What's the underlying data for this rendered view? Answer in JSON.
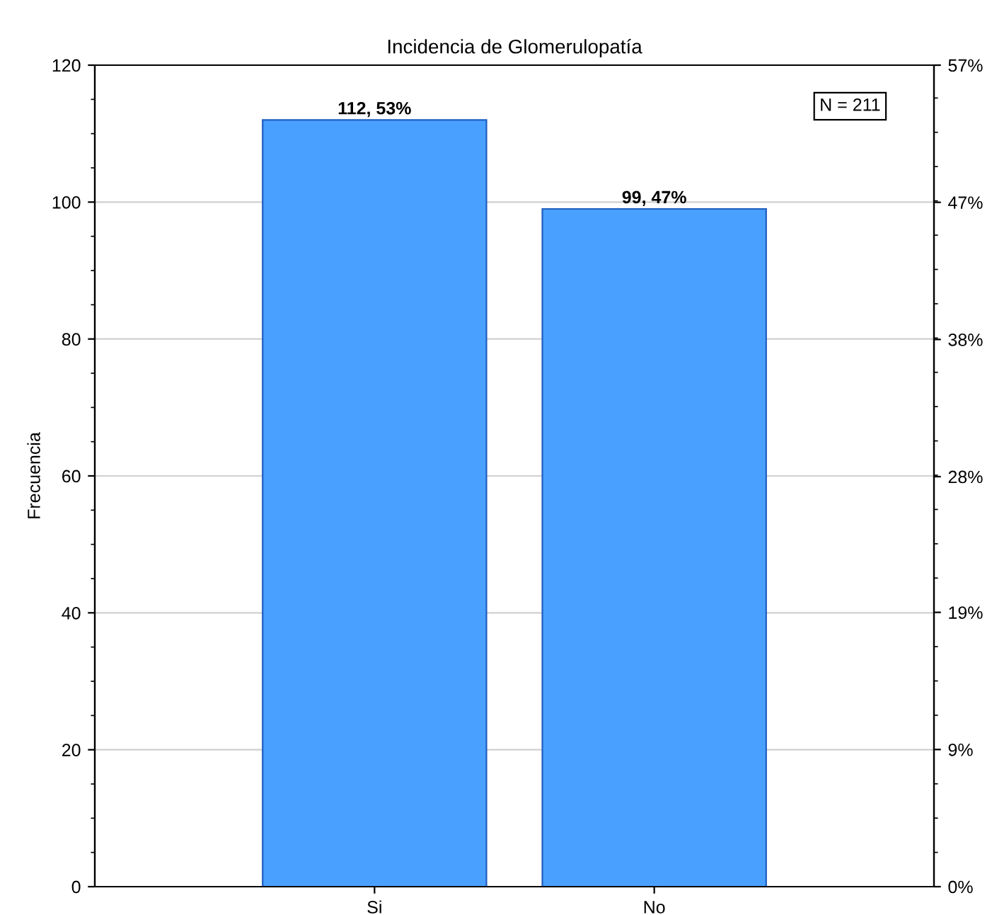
{
  "chart_data": {
    "type": "bar",
    "title": "Incidencia de Glomerulopatía",
    "ylabel": "Frecuencia",
    "categories": [
      "Si",
      "No"
    ],
    "series": [
      {
        "color": "#4aa0ff",
        "values": [
          112,
          99
        ],
        "value_labels": [
          "112, 53%",
          "99, 47%"
        ]
      }
    ],
    "ylim": [
      0,
      120
    ],
    "yticks": [
      0,
      20,
      40,
      60,
      80,
      100,
      120
    ],
    "y2lim": [
      0,
      56.9
    ],
    "y2ticks": [
      {
        "value": 0,
        "label": "0%"
      },
      {
        "value": 9.5,
        "label": "9%"
      },
      {
        "value": 19,
        "label": "19%"
      },
      {
        "value": 28.4,
        "label": "28%"
      },
      {
        "value": 37.9,
        "label": "38%"
      },
      {
        "value": 47.4,
        "label": "47%"
      },
      {
        "value": 56.9,
        "label": "57%"
      }
    ],
    "annotations": [
      "N = 211"
    ],
    "grid": "y",
    "legend": false
  }
}
